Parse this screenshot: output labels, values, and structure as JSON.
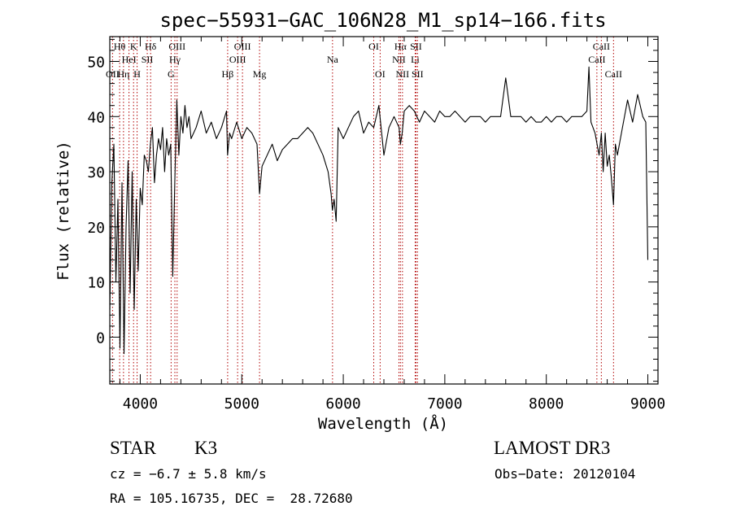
{
  "chart_data": {
    "type": "line",
    "title": "spec−55931−GAC_106N28_M1_sp14−166.fits",
    "xlabel": "Wavelength (Å)",
    "ylabel": "Flux (relative)",
    "xlim": [
      3700,
      9100
    ],
    "ylim": [
      -8.5,
      54.5
    ],
    "xticks": [
      4000,
      5000,
      6000,
      7000,
      8000,
      9000
    ],
    "yticks": [
      0,
      10,
      20,
      30,
      40,
      50
    ],
    "x_minor_step": 200,
    "y_minor_step": 2,
    "series": [
      {
        "name": "flux",
        "x": [
          3700,
          3720,
          3740,
          3760,
          3780,
          3800,
          3820,
          3840,
          3860,
          3880,
          3900,
          3920,
          3940,
          3960,
          3980,
          4000,
          4020,
          4040,
          4060,
          4080,
          4100,
          4120,
          4140,
          4160,
          4180,
          4200,
          4220,
          4240,
          4260,
          4280,
          4300,
          4320,
          4340,
          4360,
          4380,
          4400,
          4420,
          4440,
          4460,
          4480,
          4500,
          4550,
          4600,
          4650,
          4700,
          4750,
          4800,
          4850,
          4860,
          4880,
          4900,
          4950,
          5000,
          5050,
          5100,
          5150,
          5175,
          5200,
          5250,
          5300,
          5350,
          5400,
          5450,
          5500,
          5550,
          5600,
          5650,
          5700,
          5750,
          5800,
          5850,
          5880,
          5893,
          5910,
          5930,
          5950,
          6000,
          6050,
          6100,
          6150,
          6200,
          6250,
          6300,
          6350,
          6400,
          6450,
          6500,
          6550,
          6563,
          6580,
          6600,
          6650,
          6700,
          6750,
          6800,
          6850,
          6900,
          6950,
          7000,
          7050,
          7100,
          7150,
          7200,
          7250,
          7300,
          7350,
          7400,
          7450,
          7500,
          7550,
          7600,
          7650,
          7700,
          7750,
          7800,
          7850,
          7900,
          7950,
          8000,
          8050,
          8100,
          8150,
          8200,
          8250,
          8300,
          8350,
          8400,
          8420,
          8440,
          8460,
          8480,
          8500,
          8520,
          8542,
          8560,
          8580,
          8600,
          8620,
          8640,
          8662,
          8680,
          8700,
          8750,
          8800,
          8850,
          8900,
          8950,
          8980,
          9000
        ],
        "values": [
          5,
          28,
          35,
          10,
          25,
          -2,
          28,
          -3,
          20,
          32,
          8,
          30,
          5,
          25,
          12,
          27,
          24,
          33,
          32,
          30,
          35,
          38,
          28,
          33,
          36,
          34,
          38,
          30,
          36,
          33,
          35,
          11,
          28,
          43,
          33,
          40,
          37,
          42,
          38,
          40,
          36,
          38,
          41,
          37,
          39,
          36,
          38,
          41,
          33,
          37,
          36,
          39,
          36,
          38,
          37,
          35,
          26,
          31,
          33,
          35,
          32,
          34,
          35,
          36,
          36,
          37,
          38,
          37,
          35,
          33,
          30,
          26,
          23,
          25,
          21,
          38,
          36,
          38,
          40,
          41,
          37,
          39,
          38,
          42,
          33,
          38,
          40,
          38,
          35,
          37,
          41,
          42,
          41,
          39,
          41,
          40,
          39,
          41,
          40,
          40,
          41,
          40,
          39,
          40,
          40,
          40,
          39,
          40,
          40,
          40,
          47,
          40,
          40,
          40,
          39,
          40,
          39,
          39,
          40,
          39,
          40,
          40,
          39,
          40,
          40,
          40,
          41,
          49,
          39,
          38,
          37,
          35,
          33,
          37,
          30,
          37,
          31,
          33,
          29,
          24,
          35,
          33,
          38,
          43,
          39,
          44,
          40,
          39,
          14
        ]
      }
    ],
    "line_markers": [
      {
        "label": "Hθ",
        "x": 3797,
        "row": 1
      },
      {
        "label": "OII",
        "x": 3727,
        "row": 3
      },
      {
        "label": "Hη",
        "x": 3835,
        "row": 3
      },
      {
        "label": "HeI",
        "x": 3889,
        "row": 2
      },
      {
        "label": "K",
        "x": 3934,
        "row": 1
      },
      {
        "label": "H",
        "x": 3969,
        "row": 3
      },
      {
        "label": "Hδ",
        "x": 4102,
        "row": 1
      },
      {
        "label": "SII",
        "x": 4069,
        "row": 2
      },
      {
        "label": "G",
        "x": 4304,
        "row": 3
      },
      {
        "label": "Hγ",
        "x": 4341,
        "row": 2
      },
      {
        "label": "OIII",
        "x": 4363,
        "row": 1
      },
      {
        "label": "Hβ",
        "x": 4861,
        "row": 3
      },
      {
        "label": "OIII",
        "x": 4959,
        "row": 2
      },
      {
        "label": "OIII",
        "x": 5007,
        "row": 1
      },
      {
        "label": "Mg",
        "x": 5175,
        "row": 3
      },
      {
        "label": "Na",
        "x": 5894,
        "row": 2
      },
      {
        "label": "OI",
        "x": 6300,
        "row": 1
      },
      {
        "label": "OI",
        "x": 6363,
        "row": 3
      },
      {
        "label": "NII",
        "x": 6548,
        "row": 2
      },
      {
        "label": "Hα",
        "x": 6563,
        "row": 1
      },
      {
        "label": "NII",
        "x": 6583,
        "row": 3
      },
      {
        "label": "Li",
        "x": 6708,
        "row": 2
      },
      {
        "label": "SII",
        "x": 6716,
        "row": 1
      },
      {
        "label": "SII",
        "x": 6731,
        "row": 3
      },
      {
        "label": "CaII",
        "x": 8498,
        "row": 2
      },
      {
        "label": "CaII",
        "x": 8542,
        "row": 1
      },
      {
        "label": "CaII",
        "x": 8662,
        "row": 3
      }
    ]
  },
  "info": {
    "object_class": "STAR",
    "subclass": "K3",
    "survey": "LAMOST DR3",
    "cz": "cz = −6.7 ± 5.8 km/s",
    "obs_date": "Obs−Date: 20120104",
    "radec": "RA = 105.16735, DEC =  28.72680"
  },
  "colors": {
    "line": "#000000",
    "marker": "#b00000"
  }
}
